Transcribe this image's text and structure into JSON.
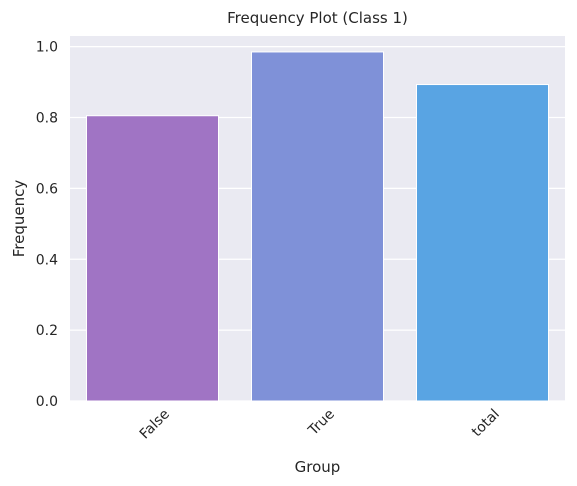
{
  "chart_data": {
    "type": "bar",
    "title": "Frequency Plot (Class 1)",
    "xlabel": "Group",
    "ylabel": "Frequency",
    "categories": [
      "False",
      "True",
      "total"
    ],
    "values": [
      0.805,
      0.985,
      0.893
    ],
    "colors": [
      "#a074c4",
      "#7f91d8",
      "#59a4e3"
    ],
    "ylim": [
      0,
      1.03
    ],
    "yticks": [
      "0.0",
      "0.2",
      "0.4",
      "0.6",
      "0.8",
      "1.0"
    ],
    "ytick_values": [
      0,
      0.2,
      0.4,
      0.6,
      0.8,
      1.0
    ],
    "grid": true,
    "background": "#eaeaf2",
    "legend": false
  }
}
